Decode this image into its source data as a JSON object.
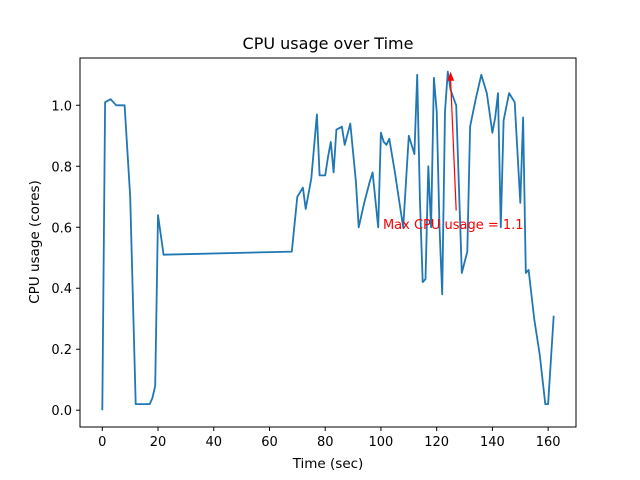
{
  "chart_data": {
    "type": "line",
    "title": "CPU usage over Time",
    "xlabel": "Time (sec)",
    "ylabel": "CPU usage (cores)",
    "xlim": [
      -8,
      170
    ],
    "ylim": [
      -0.055,
      1.155
    ],
    "xticks": [
      0,
      20,
      40,
      60,
      80,
      100,
      120,
      140,
      160
    ],
    "yticks": [
      0.0,
      0.2,
      0.4,
      0.6,
      0.8,
      1.0
    ],
    "ytick_labels": [
      "0.0",
      "0.2",
      "0.4",
      "0.6",
      "0.8",
      "1.0"
    ],
    "grid": false,
    "series": [
      {
        "color": "#1f77b4",
        "x": [
          0,
          1,
          3,
          4,
          5,
          7,
          8,
          10,
          12,
          14,
          17,
          18,
          19,
          20,
          22,
          68,
          70,
          72,
          73,
          75,
          77,
          78,
          80,
          81,
          82,
          83,
          84,
          86,
          87,
          89,
          91,
          92,
          94,
          96,
          97,
          99,
          100,
          101,
          102,
          103,
          105,
          107,
          108,
          110,
          111,
          112,
          113,
          114,
          115,
          116,
          117,
          118,
          119,
          120,
          121,
          122,
          123,
          124,
          125,
          127,
          129,
          131,
          132,
          134,
          136,
          138,
          140,
          141,
          142,
          143,
          144,
          146,
          148,
          150,
          151,
          152,
          153,
          154,
          155,
          157,
          159,
          160,
          162
        ],
        "y": [
          0.0,
          1.01,
          1.02,
          1.01,
          1.0,
          1.0,
          1.0,
          0.7,
          0.02,
          0.02,
          0.02,
          0.04,
          0.08,
          0.64,
          0.51,
          0.52,
          0.7,
          0.73,
          0.66,
          0.76,
          0.97,
          0.77,
          0.77,
          0.83,
          0.88,
          0.78,
          0.92,
          0.93,
          0.87,
          0.94,
          0.75,
          0.6,
          0.68,
          0.75,
          0.78,
          0.6,
          0.91,
          0.88,
          0.87,
          0.89,
          0.78,
          0.66,
          0.6,
          0.9,
          0.87,
          0.84,
          1.1,
          0.68,
          0.42,
          0.43,
          0.8,
          0.6,
          1.09,
          0.98,
          0.6,
          0.38,
          0.98,
          1.11,
          1.05,
          1.0,
          0.45,
          0.52,
          0.93,
          1.02,
          1.1,
          1.04,
          0.91,
          0.96,
          1.04,
          0.6,
          0.95,
          1.04,
          1.01,
          0.68,
          0.96,
          0.45,
          0.46,
          0.38,
          0.3,
          0.18,
          0.02,
          0.02,
          0.31
        ]
      }
    ],
    "annotation": {
      "text": "Max CPU usage = 1.1",
      "color": "#ff0000",
      "xy": [
        125,
        1.11
      ],
      "xytext": [
        100,
        0.61
      ]
    }
  }
}
